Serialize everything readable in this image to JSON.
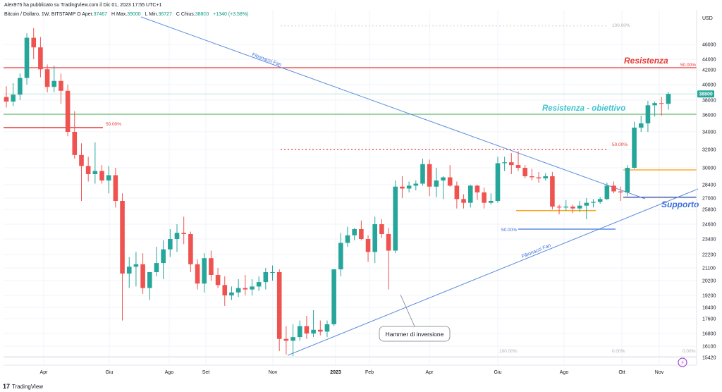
{
  "header_text": "Alex975 ha pubblicato su TradingView.com il Dic 01, 2023 17:55 UTC+1",
  "legend": {
    "symbol": "Bitcoin / Dollaro, 1W, BITSTAMP",
    "open_label": "O",
    "open_prefix": "Aper.",
    "open": "37467",
    "high_label": "H",
    "high_prefix": "Max.",
    "high": "39000",
    "low_label": "L",
    "low_prefix": "Min.",
    "low": "36727",
    "close_label": "C",
    "close_prefix": "Chius.",
    "close": "38800",
    "change": "+1340 (+3.58%)"
  },
  "footer": {
    "brand": "TradingView",
    "logo": "17"
  },
  "colors": {
    "up": "#26a69a",
    "down": "#ef5350",
    "resistance": "#e53935",
    "green_line": "#4caf50",
    "fan": "#5c8de0",
    "support_text": "#3d6fd8",
    "target_text": "#40c4cf",
    "orange": "#ff9800",
    "navy": "#1e3a8a",
    "grid": "#f0f3fa"
  },
  "annotations": {
    "resistenza": "Resistenza",
    "resistenza_obiettivo": "Resistenza - obiettivo",
    "supporto": "Supporto",
    "hammer": "Hammer di inversione",
    "fan_top": "Fibonacci Fan",
    "fan_bottom": "Fibonacci Fan",
    "fib_100": "100.00%",
    "fib_50_top": "50.00%",
    "fib_50_left": "50.00%",
    "fib_50_mid": "50.00%",
    "fib_50_low": "50.00%",
    "fib_100_bottom": "100.00%",
    "fib_0_a": "0.00%",
    "fib_0_b": "0.00%"
  },
  "chart_data": {
    "type": "candlestick",
    "title": "Bitcoin / Dollaro, 1W, BITSTAMP",
    "currency_label": "USD",
    "last_price_label": "38800",
    "y_ticks": [
      15420,
      16100,
      16800,
      17600,
      18400,
      19200,
      20200,
      21100,
      22200,
      23400,
      24600,
      25800,
      27000,
      28400,
      30000,
      32000,
      34000,
      36000,
      38000,
      40000,
      42000,
      44000,
      46000
    ],
    "x_ticks": [
      "Apr",
      "Giu",
      "Ago",
      "Set",
      "Nov",
      "2023",
      "Feb",
      "Apr",
      "Giu",
      "Ago",
      "Ott",
      "Nov"
    ],
    "horizontal_levels": {
      "resistenza": 42400,
      "resistenza_obiettivo": 36100,
      "current_price": 38800,
      "fib_50_left": 34500,
      "fib_50_mid_dotted": 32000,
      "orange_upper": 29800,
      "support_navy": 27100,
      "orange_lower": 25700,
      "fib_50_low": 24200,
      "fib_100_top_dotted": 48500
    },
    "candles": [
      [
        38400,
        39800,
        37000,
        37800
      ],
      [
        37800,
        40200,
        37200,
        38700
      ],
      [
        38700,
        41500,
        38000,
        40900
      ],
      [
        40900,
        47500,
        40000,
        46900
      ],
      [
        46900,
        48200,
        44000,
        45600
      ],
      [
        45600,
        47000,
        41000,
        42100
      ],
      [
        42100,
        43000,
        39000,
        39700
      ],
      [
        39700,
        42800,
        39000,
        40500
      ],
      [
        40500,
        41500,
        37500,
        39200
      ],
      [
        39200,
        40000,
        33500,
        34000
      ],
      [
        34000,
        36500,
        31000,
        31400
      ],
      [
        31400,
        32700,
        26700,
        30200
      ],
      [
        30200,
        31200,
        28700,
        29400
      ],
      [
        29400,
        32800,
        28500,
        29700
      ],
      [
        29700,
        30300,
        28500,
        28800
      ],
      [
        28800,
        30200,
        27500,
        29300
      ],
      [
        29300,
        30000,
        26000,
        26700
      ],
      [
        26700,
        27500,
        17500,
        20700
      ],
      [
        20700,
        22000,
        19700,
        21200
      ],
      [
        21200,
        22400,
        19800,
        21400
      ],
      [
        21400,
        22300,
        19300,
        19700
      ],
      [
        19700,
        20800,
        18900,
        20800
      ],
      [
        20800,
        22800,
        20500,
        21500
      ],
      [
        21500,
        23300,
        20300,
        22600
      ],
      [
        22600,
        24200,
        22000,
        23400
      ],
      [
        23400,
        24600,
        22400,
        23900
      ],
      [
        23900,
        25200,
        23000,
        23800
      ],
      [
        23800,
        24000,
        20800,
        21400
      ],
      [
        21400,
        21800,
        19600,
        20000
      ],
      [
        20000,
        22300,
        19400,
        21900
      ],
      [
        21900,
        22500,
        20200,
        20600
      ],
      [
        20600,
        21100,
        19700,
        19900
      ],
      [
        19900,
        20500,
        18500,
        19200
      ],
      [
        19200,
        19800,
        18900,
        19400
      ],
      [
        19400,
        20300,
        19100,
        19700
      ],
      [
        19700,
        20600,
        19200,
        19600
      ],
      [
        19600,
        20300,
        19200,
        19800
      ],
      [
        19800,
        20500,
        19500,
        20100
      ],
      [
        20100,
        21100,
        19600,
        20800
      ],
      [
        20800,
        21300,
        20200,
        20800
      ],
      [
        20800,
        21000,
        15800,
        16500
      ],
      [
        16500,
        17200,
        15600,
        16400
      ],
      [
        16400,
        17300,
        15500,
        16600
      ],
      [
        16600,
        17500,
        16400,
        17200
      ],
      [
        17200,
        17800,
        16500,
        16800
      ],
      [
        16800,
        18200,
        16600,
        17000
      ],
      [
        17000,
        17500,
        16700,
        16900
      ],
      [
        16900,
        17500,
        16600,
        17300
      ],
      [
        17300,
        21000,
        17200,
        21000
      ],
      [
        21000,
        23900,
        20500,
        23100
      ],
      [
        23100,
        24400,
        22800,
        23700
      ],
      [
        23700,
        24300,
        23300,
        24200
      ],
      [
        24200,
        24900,
        23300,
        23400
      ],
      [
        23400,
        23700,
        21600,
        22400
      ],
      [
        22400,
        25200,
        21500,
        24600
      ],
      [
        24600,
        25000,
        23500,
        23800
      ],
      [
        23800,
        24300,
        19600,
        22500
      ],
      [
        22500,
        28800,
        22300,
        28200
      ],
      [
        28200,
        29200,
        27000,
        28000
      ],
      [
        28000,
        28700,
        27600,
        28300
      ],
      [
        28300,
        28800,
        27800,
        28500
      ],
      [
        28500,
        31000,
        28300,
        30400
      ],
      [
        30400,
        30900,
        27200,
        28200
      ],
      [
        28200,
        30000,
        27100,
        28800
      ],
      [
        28800,
        29200,
        26900,
        29100
      ],
      [
        29100,
        30300,
        28200,
        28300
      ],
      [
        28300,
        28700,
        25900,
        26900
      ],
      [
        26900,
        27400,
        25900,
        26500
      ],
      [
        26500,
        28400,
        26000,
        28300
      ],
      [
        28300,
        28400,
        26800,
        27600
      ],
      [
        27600,
        28100,
        25900,
        26500
      ],
      [
        26500,
        27500,
        26300,
        26700
      ],
      [
        26700,
        31200,
        26500,
        30500
      ],
      [
        30500,
        31200,
        29700,
        30600
      ],
      [
        30600,
        31600,
        29400,
        30300
      ],
      [
        30300,
        31800,
        29700,
        30000
      ],
      [
        30000,
        30300,
        29000,
        29200
      ],
      [
        29200,
        29900,
        28800,
        29100
      ],
      [
        29100,
        29600,
        28600,
        29000
      ],
      [
        29000,
        29500,
        28800,
        29200
      ],
      [
        29200,
        29600,
        25800,
        26100
      ],
      [
        26100,
        26300,
        25400,
        26000
      ],
      [
        26000,
        26800,
        25700,
        26100
      ],
      [
        26100,
        26300,
        25500,
        25900
      ],
      [
        25900,
        26700,
        25600,
        26200
      ],
      [
        26200,
        27000,
        25000,
        26500
      ],
      [
        26500,
        26900,
        26000,
        26600
      ],
      [
        26600,
        27100,
        26400,
        26900
      ],
      [
        26900,
        28600,
        26800,
        28300
      ],
      [
        28300,
        28700,
        27500,
        27700
      ],
      [
        27700,
        28200,
        26700,
        27600
      ],
      [
        27600,
        30300,
        27200,
        30000
      ],
      [
        30000,
        35200,
        29900,
        34500
      ],
      [
        34500,
        35900,
        34000,
        35000
      ],
      [
        35000,
        37900,
        34000,
        37300
      ],
      [
        37300,
        37800,
        35800,
        37600
      ],
      [
        37600,
        38400,
        35900,
        37500
      ],
      [
        37500,
        39000,
        36700,
        38800
      ]
    ]
  }
}
